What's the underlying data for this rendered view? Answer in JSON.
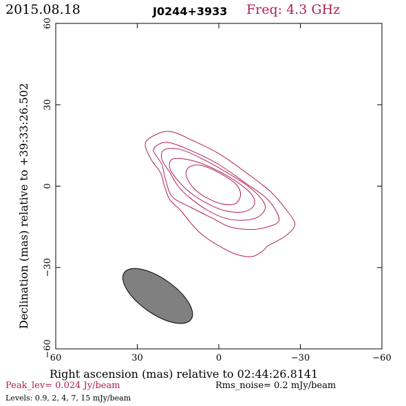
{
  "header": {
    "date": "2015.08.18",
    "source": "J0244+3933",
    "freq": "Freq: 4.3 GHz"
  },
  "footer": {
    "peak": "Peak_lev=  0.024 Jy/beam",
    "rms": "Rms_noise=   0.2 mJy/beam",
    "levels": "Levels: 0.9,   2,   4,   7,  15 mJy/beam"
  },
  "colors": {
    "contour": "#b0204a",
    "beam_fill": "#808080",
    "accent_text": "#b0204a"
  },
  "chart_data": {
    "type": "contour",
    "xlabel": "Right ascension (mas) relative to 02:44:26.8141",
    "ylabel": "Declination (mas) relative to +39:33:26.502",
    "xlim": [
      60,
      -60
    ],
    "ylim": [
      -60,
      60
    ],
    "xticks": [
      60,
      30,
      0,
      -30,
      -60
    ],
    "yticks": [
      -60,
      -30,
      0,
      30,
      60
    ],
    "xtick_labels": [
      "60",
      "30",
      "0",
      "−30",
      "−60"
    ],
    "ytick_labels": [
      "−60",
      "−30",
      "0",
      "30",
      "60"
    ],
    "levels_mJy": [
      0.9,
      2,
      4,
      7,
      15
    ],
    "contours": [
      {
        "level": 0.9,
        "points": [
          [
            22.0,
            19.5
          ],
          [
            17.0,
            20.0
          ],
          [
            10.0,
            17.0
          ],
          [
            0.0,
            12.0
          ],
          [
            -10.0,
            5.0
          ],
          [
            -19.0,
            -2.0
          ],
          [
            -25.0,
            -9.0
          ],
          [
            -28.0,
            -14.0
          ],
          [
            -25.0,
            -18.0
          ],
          [
            -20.0,
            -21.0
          ],
          [
            -18.0,
            -22.0
          ],
          [
            -16.0,
            -24.0
          ],
          [
            -12.0,
            -26.0
          ],
          [
            -6.0,
            -25.0
          ],
          [
            0.0,
            -22.0
          ],
          [
            6.0,
            -18.0
          ],
          [
            10.0,
            -14.0
          ],
          [
            14.0,
            -9.0
          ],
          [
            18.0,
            -5.0
          ],
          [
            20.0,
            0.0
          ],
          [
            21.5,
            5.0
          ],
          [
            25.0,
            10.0
          ],
          [
            27.0,
            16.0
          ],
          [
            22.0,
            19.5
          ]
        ]
      },
      {
        "level": 2,
        "points": [
          [
            22.0,
            15.5
          ],
          [
            18.0,
            16.0
          ],
          [
            10.0,
            13.0
          ],
          [
            0.0,
            8.0
          ],
          [
            -10.0,
            1.0
          ],
          [
            -17.0,
            -4.0
          ],
          [
            -21.0,
            -9.0
          ],
          [
            -22.0,
            -13.0
          ],
          [
            -18.0,
            -15.0
          ],
          [
            -12.0,
            -16.0
          ],
          [
            -4.0,
            -15.0
          ],
          [
            2.0,
            -12.0
          ],
          [
            10.0,
            -8.0
          ],
          [
            17.0,
            -4.0
          ],
          [
            19.5,
            2.0
          ],
          [
            21.0,
            8.0
          ],
          [
            24.0,
            13.0
          ],
          [
            22.0,
            15.5
          ]
        ]
      },
      {
        "level": 4,
        "points": [
          [
            20.0,
            13.5
          ],
          [
            14.0,
            13.5
          ],
          [
            6.0,
            10.0
          ],
          [
            -3.0,
            5.0
          ],
          [
            -12.0,
            -1.0
          ],
          [
            -17.0,
            -7.0
          ],
          [
            -15.0,
            -11.0
          ],
          [
            -10.0,
            -12.5
          ],
          [
            -3.0,
            -12.0
          ],
          [
            4.0,
            -9.0
          ],
          [
            11.0,
            -4.0
          ],
          [
            15.0,
            0.0
          ],
          [
            18.0,
            5.0
          ],
          [
            21.0,
            10.0
          ],
          [
            20.0,
            13.5
          ]
        ]
      },
      {
        "level": 7,
        "points": [
          [
            17.0,
            10.0
          ],
          [
            10.0,
            9.5
          ],
          [
            2.0,
            6.5
          ],
          [
            -6.0,
            2.0
          ],
          [
            -12.0,
            -3.0
          ],
          [
            -13.0,
            -7.0
          ],
          [
            -9.0,
            -9.5
          ],
          [
            -2.0,
            -9.0
          ],
          [
            5.0,
            -6.0
          ],
          [
            11.0,
            -2.0
          ],
          [
            15.0,
            2.0
          ],
          [
            18.0,
            6.5
          ],
          [
            17.0,
            10.0
          ]
        ]
      },
      {
        "level": 15,
        "points": [
          [
            10.0,
            7.5
          ],
          [
            6.0,
            7.5
          ],
          [
            0.0,
            5.0
          ],
          [
            -6.0,
            1.0
          ],
          [
            -8.0,
            -3.0
          ],
          [
            -6.0,
            -6.5
          ],
          [
            -1.0,
            -6.5
          ],
          [
            5.0,
            -4.0
          ],
          [
            9.0,
            -1.0
          ],
          [
            11.5,
            2.5
          ],
          [
            12.0,
            5.5
          ],
          [
            10.0,
            7.5
          ]
        ]
      }
    ],
    "beam": {
      "center": [
        22.5,
        -40.5
      ],
      "major_mas": 30.0,
      "minor_mas": 13.0,
      "pa_deg": 55
    }
  }
}
